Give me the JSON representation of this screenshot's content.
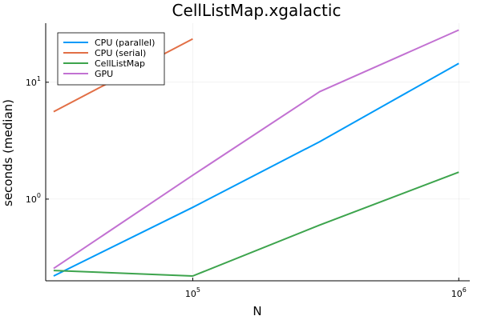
{
  "chart_data": {
    "type": "line",
    "title": "CellListMap.xgalactic",
    "xlabel": "N",
    "ylabel": "seconds (median)",
    "xscale": "log",
    "yscale": "log",
    "xlim": [
      28000,
      1100000
    ],
    "ylim": [
      0.2,
      32
    ],
    "x_ticks": [
      {
        "value": 100000,
        "base": "10",
        "exp": "5"
      },
      {
        "value": 1000000,
        "base": "10",
        "exp": "6"
      }
    ],
    "y_ticks": [
      {
        "value": 1,
        "base": "10",
        "exp": "0"
      },
      {
        "value": 10,
        "base": "10",
        "exp": "1"
      }
    ],
    "grid": true,
    "legend_position": "top-left",
    "series": [
      {
        "name": "CPU (parallel)",
        "color": "#009af9",
        "x": [
          30000,
          100000,
          300000,
          1000000
        ],
        "y": [
          0.22,
          0.85,
          3.1,
          14.5
        ]
      },
      {
        "name": "CPU (serial)",
        "color": "#e26f46",
        "x": [
          30000,
          100000
        ],
        "y": [
          5.6,
          23.5
        ]
      },
      {
        "name": "CellListMap",
        "color": "#3da44d",
        "x": [
          30000,
          100000,
          300000,
          1000000
        ],
        "y": [
          0.245,
          0.22,
          0.6,
          1.7
        ]
      },
      {
        "name": "GPU",
        "color": "#c271d2",
        "x": [
          30000,
          100000,
          300000,
          1000000
        ],
        "y": [
          0.255,
          1.6,
          8.3,
          28.0
        ]
      }
    ]
  }
}
